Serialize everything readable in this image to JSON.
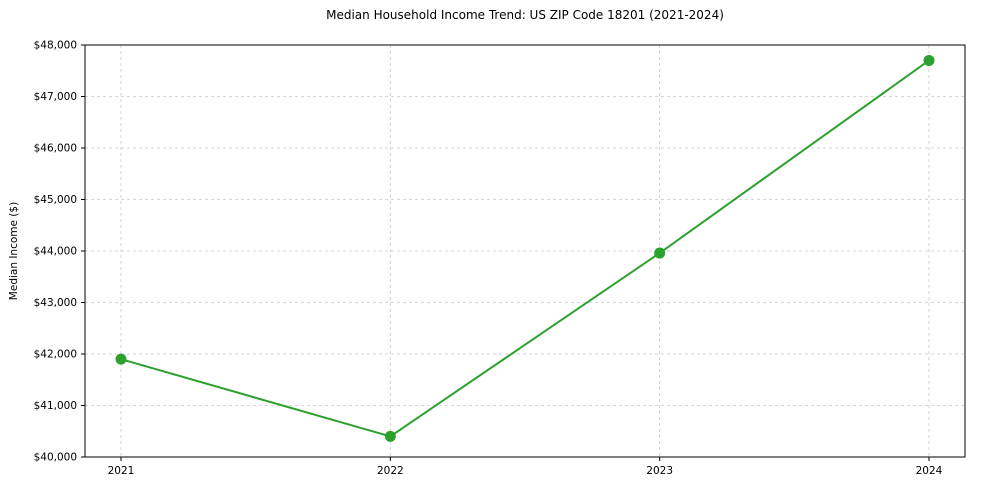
{
  "chart_data": {
    "type": "line",
    "title": "Median Household Income Trend: US ZIP Code 18201 (2021-2024)",
    "xlabel": "",
    "ylabel": "Median Income ($)",
    "x": [
      "2021",
      "2022",
      "2023",
      "2024"
    ],
    "series": [
      {
        "name": "Median Household Income",
        "values": [
          41900,
          40400,
          43960,
          47700
        ]
      }
    ],
    "ylim": [
      40000,
      48000
    ],
    "ytick_step": 1000,
    "yticks": [
      "$40,000",
      "$41,000",
      "$42,000",
      "$43,000",
      "$44,000",
      "$45,000",
      "$46,000",
      "$47,000",
      "$48,000"
    ],
    "xticks": [
      "2021",
      "2022",
      "2023",
      "2024"
    ],
    "grid": true,
    "grid_style": "dashed",
    "legend": "none",
    "colors": {
      "line": "#2ca02c",
      "marker": "#2ca02c",
      "grid": "#c8c8c8",
      "spine": "#000000",
      "background": "#ffffff"
    }
  }
}
